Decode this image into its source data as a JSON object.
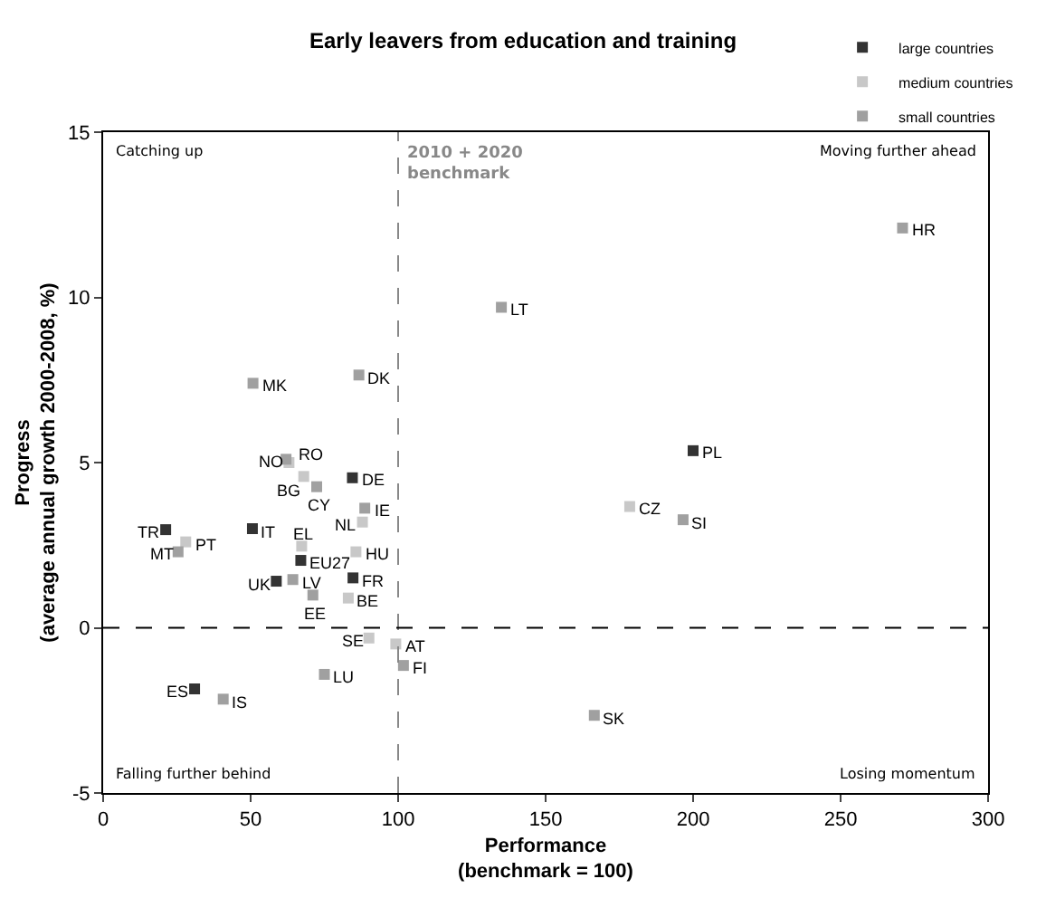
{
  "chart_data": {
    "type": "scatter",
    "title": "Early leavers from education and training",
    "xlabel": "Performance\n(benchmark = 100)",
    "ylabel": "Progress\n(average annual growth 2000-2008, %)",
    "xlim": [
      0,
      300
    ],
    "xticks": [
      0,
      50,
      100,
      150,
      200,
      250,
      300
    ],
    "ylim": [
      -5,
      15
    ],
    "yticks": [
      -5,
      0,
      5,
      10,
      15
    ],
    "grid": false,
    "legend": "top right",
    "marker": "square",
    "series": [
      {
        "name": "large countries",
        "color": "#333333",
        "x": [
          200,
          84.5,
          21.2,
          50.6,
          67,
          58.7,
          84.7,
          31
        ],
        "values": [
          5.36,
          4.54,
          2.97,
          3.0,
          2.04,
          1.41,
          1.51,
          -1.85
        ]
      },
      {
        "name": "medium countries",
        "color": "#c8c8c8",
        "x": [
          178.5,
          63,
          68,
          87.9,
          28,
          67.3,
          85.7,
          83.1,
          90.1,
          99.2
        ],
        "values": [
          3.67,
          5.0,
          4.58,
          3.2,
          2.6,
          2.47,
          2.3,
          0.9,
          -0.31,
          -0.49
        ]
      },
      {
        "name": "small countries",
        "color": "#a0a0a0",
        "x": [
          271,
          135,
          196.6,
          166.5,
          50.8,
          86.7,
          62,
          72.4,
          88.7,
          25.4,
          64.3,
          71.1,
          101.8,
          75,
          40.7
        ],
        "values": [
          12.1,
          9.7,
          3.27,
          -2.65,
          7.4,
          7.65,
          5.1,
          4.27,
          3.62,
          2.3,
          1.46,
          0.99,
          -1.14,
          -1.41,
          -2.16
        ]
      }
    ],
    "ref_lines": [
      {
        "axis": "x",
        "value": 100,
        "label": "2010 + 2020\nbenchmark",
        "color": "#888888",
        "line_style": "dashed"
      },
      {
        "axis": "y",
        "value": 0,
        "color": "#000000",
        "line_style": "dashed"
      }
    ],
    "annotations": [
      "Catching up",
      "Moving further ahead",
      "Falling further behind",
      "Losing momentum",
      {
        "text": "PL",
        "x": 200,
        "y": 5.36
      },
      {
        "text": "DE",
        "x": 84.5,
        "y": 4.54
      },
      {
        "text": "TR",
        "x": 21.2,
        "y": 2.97
      },
      {
        "text": "IT",
        "x": 50.6,
        "y": 3.0
      },
      {
        "text": "EU27",
        "x": 67,
        "y": 2.04
      },
      {
        "text": "UK",
        "x": 58.7,
        "y": 1.41
      },
      {
        "text": "FR",
        "x": 84.7,
        "y": 1.51
      },
      {
        "text": "ES",
        "x": 31,
        "y": -1.85
      },
      {
        "text": "CZ",
        "x": 178.5,
        "y": 3.67
      },
      {
        "text": "RO",
        "x": 63,
        "y": 5.0
      },
      {
        "text": "BG",
        "x": 68,
        "y": 4.58
      },
      {
        "text": "NL",
        "x": 87.9,
        "y": 3.2
      },
      {
        "text": "PT",
        "x": 28,
        "y": 2.6
      },
      {
        "text": "EL",
        "x": 67.3,
        "y": 2.47
      },
      {
        "text": "HU",
        "x": 85.7,
        "y": 2.3
      },
      {
        "text": "BE",
        "x": 83.1,
        "y": 0.9
      },
      {
        "text": "SE",
        "x": 90.1,
        "y": -0.31
      },
      {
        "text": "AT",
        "x": 99.2,
        "y": -0.49
      },
      {
        "text": "HR",
        "x": 271,
        "y": 12.1
      },
      {
        "text": "LT",
        "x": 135,
        "y": 9.7
      },
      {
        "text": "SI",
        "x": 196.6,
        "y": 3.27
      },
      {
        "text": "SK",
        "x": 166.5,
        "y": -2.65
      },
      {
        "text": "MK",
        "x": 50.8,
        "y": 7.4
      },
      {
        "text": "DK",
        "x": 86.7,
        "y": 7.65
      },
      {
        "text": "NO",
        "x": 62,
        "y": 5.1
      },
      {
        "text": "CY",
        "x": 72.4,
        "y": 4.27
      },
      {
        "text": "IE",
        "x": 88.7,
        "y": 3.62
      },
      {
        "text": "MT",
        "x": 25.4,
        "y": 2.3
      },
      {
        "text": "LV",
        "x": 64.3,
        "y": 1.46
      },
      {
        "text": "EE",
        "x": 71.1,
        "y": 0.99
      },
      {
        "text": "FI",
        "x": 101.8,
        "y": -1.14
      },
      {
        "text": "LU",
        "x": 75,
        "y": -1.41
      },
      {
        "text": "IS",
        "x": 40.7,
        "y": -2.16
      }
    ]
  }
}
